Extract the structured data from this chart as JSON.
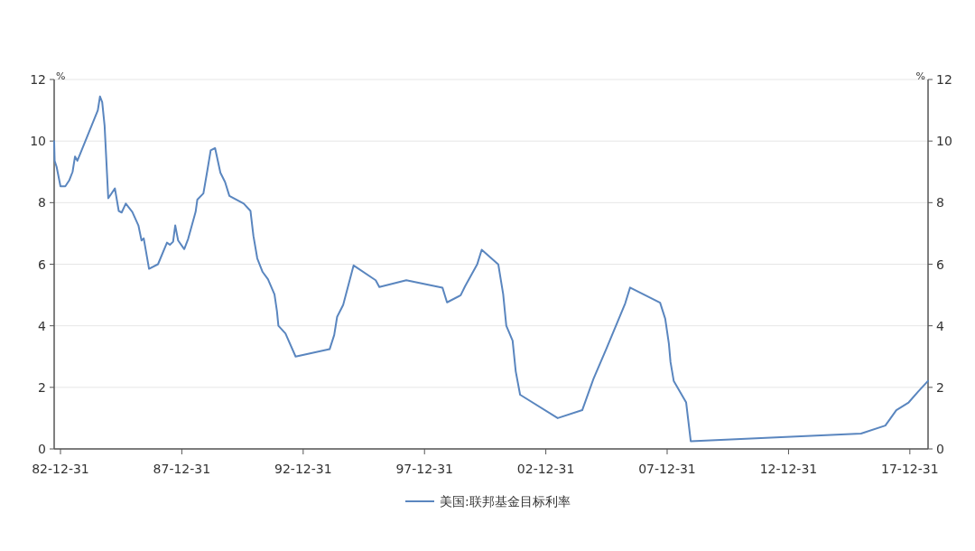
{
  "chart_data": {
    "type": "line",
    "ylabel": "%",
    "y2label": "%",
    "xlim": [
      "1982-09-27",
      "2018-10-01"
    ],
    "xticks": [
      {
        "value": "1982-12-31",
        "label": "82-12-31"
      },
      {
        "value": "1987-12-31",
        "label": "87-12-31"
      },
      {
        "value": "1992-12-31",
        "label": "92-12-31"
      },
      {
        "value": "1997-12-31",
        "label": "97-12-31"
      },
      {
        "value": "2002-12-31",
        "label": "02-12-31"
      },
      {
        "value": "2007-12-31",
        "label": "07-12-31"
      },
      {
        "value": "2012-12-31",
        "label": "12-12-31"
      },
      {
        "value": "2017-12-31",
        "label": "17-12-31"
      }
    ],
    "ylim": [
      0,
      12
    ],
    "yticks": [
      0,
      2,
      4,
      6,
      8,
      10,
      12
    ],
    "y2lim": [
      0,
      12
    ],
    "y2ticks": [
      0,
      2,
      4,
      6,
      8,
      10,
      12
    ],
    "grid": "y",
    "legend": "bottom",
    "line_style": "solid",
    "marker": "none",
    "series": [
      {
        "name": "美国:联邦基金目标利率",
        "color": "#5a86bf",
        "x": [
          "1982-09-27",
          "1982-10-04",
          "1982-11-03",
          "1982-12-31",
          "1983-03-14",
          "1983-05-11",
          "1983-07-01",
          "1983-08-07",
          "1983-09-12",
          "1984-07-15",
          "1984-08-17",
          "1984-09-19",
          "1984-10-25",
          "1984-12-19",
          "1985-03-29",
          "1985-05-26",
          "1985-07-09",
          "1985-09-09",
          "1985-12-16",
          "1986-03-18",
          "1986-05-04",
          "1986-06-06",
          "1986-08-25",
          "1987-01-07",
          "1987-05-22",
          "1987-07-05",
          "1987-08-22",
          "1987-09-23",
          "1987-11-06",
          "1988-02-06",
          "1988-04-04",
          "1988-07-26",
          "1988-08-21",
          "1988-11-20",
          "1989-01-15",
          "1989-03-10",
          "1989-05-15",
          "1989-08-03",
          "1989-10-12",
          "1989-12-16",
          "1990-07-20",
          "1990-10-30",
          "1990-12-13",
          "1991-02-09",
          "1991-04-30",
          "1991-07-20",
          "1991-10-26",
          "1991-12-02",
          "1991-12-24",
          "1992-04-08",
          "1992-09-08",
          "1994-02-02",
          "1994-04-12",
          "1994-05-26",
          "1994-08-25",
          "1995-01-29",
          "1995-12-27",
          "1996-02-20",
          "1997-04-01",
          "1998-09-27",
          "1998-12-05",
          "1999-06-28",
          "1999-09-02",
          "2000-03-02",
          "2000-05-10",
          "2001-01-15",
          "2001-03-29",
          "2001-05-15",
          "2001-08-18",
          "2001-10-04",
          "2001-12-09",
          "2003-06-28",
          "2004-07-01",
          "2004-12-16",
          "2005-07-02",
          "2006-04-09",
          "2006-06-21",
          "2007-09-16",
          "2007-12-02",
          "2008-01-26",
          "2008-02-20",
          "2008-04-08",
          "2008-10-12",
          "2008-12-20",
          "2015-12-27",
          "2016-12-27",
          "2017-06-10",
          "2017-12-13",
          "2018-05-04",
          "2018-10-01"
        ],
        "values": [
          10.0,
          9.36,
          9.16,
          8.53,
          8.53,
          8.72,
          9.0,
          9.5,
          9.36,
          11.0,
          11.45,
          11.26,
          10.5,
          8.14,
          8.46,
          7.73,
          7.68,
          7.97,
          7.7,
          7.26,
          6.77,
          6.84,
          5.85,
          6.0,
          6.7,
          6.63,
          6.73,
          7.26,
          6.77,
          6.49,
          6.82,
          7.7,
          8.1,
          8.3,
          9.0,
          9.7,
          9.77,
          8.97,
          8.67,
          8.22,
          7.97,
          7.73,
          6.92,
          6.19,
          5.75,
          5.51,
          5.02,
          4.48,
          4.0,
          3.75,
          3.0,
          3.24,
          3.7,
          4.29,
          4.68,
          5.96,
          5.48,
          5.26,
          5.48,
          5.24,
          4.76,
          4.99,
          5.28,
          5.99,
          6.47,
          5.99,
          5.03,
          4.0,
          3.52,
          2.52,
          1.76,
          1.0,
          1.26,
          2.27,
          3.27,
          4.73,
          5.24,
          4.75,
          4.23,
          3.42,
          2.82,
          2.21,
          1.51,
          0.25,
          0.5,
          0.76,
          1.26,
          1.51,
          1.86,
          2.21
        ]
      }
    ]
  }
}
